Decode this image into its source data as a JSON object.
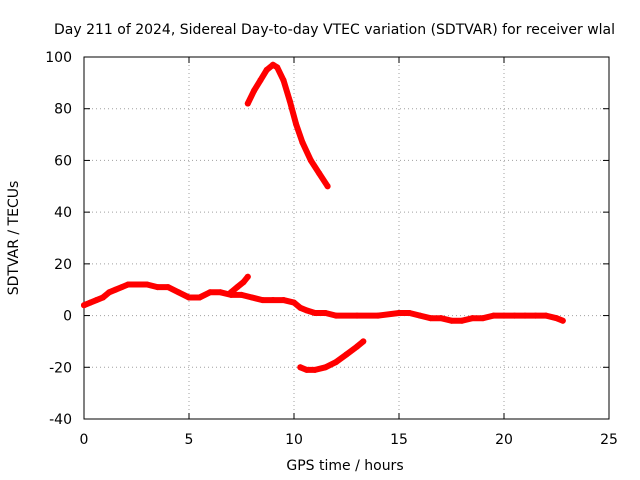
{
  "chart_data": {
    "type": "line",
    "title": "Day 211 of 2024, Sidereal Day-to-day VTEC variation (SDTVAR) for receiver wlal",
    "xlabel": "GPS time / hours",
    "ylabel": "SDTVAR / TECUs",
    "xlim": [
      0,
      25
    ],
    "ylim": [
      -40,
      100
    ],
    "xticks": [
      0,
      5,
      10,
      15,
      20,
      25
    ],
    "yticks": [
      -40,
      -20,
      0,
      20,
      40,
      60,
      80,
      100
    ],
    "xtick_labels": [
      "0",
      "5",
      "10",
      "15",
      "20",
      "25"
    ],
    "ytick_labels": [
      "-40",
      "-20",
      "0",
      "20",
      "40",
      "60",
      "80",
      "100"
    ],
    "grid": true,
    "color": "#ff0000",
    "series": [
      {
        "name": "main",
        "x": [
          0,
          0.3,
          0.6,
          0.9,
          1.2,
          1.5,
          1.8,
          2.1,
          2.5,
          3.0,
          3.5,
          4.0,
          4.5,
          5.0,
          5.5,
          6.0,
          6.5,
          7.0,
          7.5,
          8.0,
          8.5,
          9.0,
          9.5,
          10.0,
          10.3,
          10.6,
          11.0,
          11.5,
          12.0,
          13.0,
          14.0,
          15.0,
          15.5,
          16.0,
          16.5,
          17.0,
          17.5,
          18.0,
          18.5,
          19.0,
          19.5,
          20.0,
          20.5,
          21.0,
          21.5,
          22.0,
          22.5,
          22.8
        ],
        "y": [
          4,
          5,
          6,
          7,
          9,
          10,
          11,
          12,
          12,
          12,
          11,
          11,
          9,
          7,
          7,
          9,
          9,
          8,
          8,
          7,
          6,
          6,
          6,
          5,
          3,
          2,
          1,
          1,
          0,
          0,
          0,
          1,
          1,
          0,
          -1,
          -1,
          -2,
          -2,
          -1,
          -1,
          0,
          0,
          0,
          0,
          0,
          0,
          -1,
          -2
        ]
      },
      {
        "name": "segment-peak",
        "x": [
          7.8,
          8.1,
          8.4,
          8.7,
          9.0,
          9.2,
          9.5,
          9.8,
          10.1,
          10.4,
          10.8,
          11.2,
          11.6
        ],
        "y": [
          82,
          87,
          91,
          95,
          97,
          96,
          91,
          83,
          74,
          67,
          60,
          55,
          50
        ]
      },
      {
        "name": "segment-negative",
        "x": [
          10.3,
          10.6,
          11.0,
          11.5,
          12.0,
          12.5,
          13.0,
          13.3
        ],
        "y": [
          -20,
          -21,
          -21,
          -20,
          -18,
          -15,
          -12,
          -10
        ]
      },
      {
        "name": "segment-spike",
        "x": [
          7.0,
          7.3,
          7.6,
          7.8
        ],
        "y": [
          9,
          11,
          13,
          15
        ]
      }
    ]
  }
}
